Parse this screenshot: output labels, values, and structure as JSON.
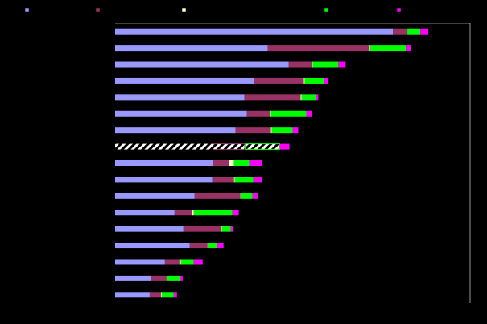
{
  "chart_data": {
    "type": "bar",
    "orientation": "horizontal",
    "stacked": true,
    "background": "#000000",
    "legend_position": "top",
    "grid": false,
    "xlim": [
      0,
      442
    ],
    "category_count": 17,
    "highlighted_row": 7,
    "series": [
      {
        "color": "#9999ff",
        "values": [
          346,
          190,
          216,
          173,
          161,
          164,
          150,
          122,
          122,
          121,
          99,
          74,
          85,
          93,
          62,
          45,
          43
        ]
      },
      {
        "color": "#993366",
        "values": [
          17,
          127,
          29,
          62,
          70,
          29,
          44,
          39,
          20,
          27,
          57,
          22,
          47,
          22,
          18,
          19,
          14
        ]
      },
      {
        "color": "#ffffcc",
        "values": [
          1,
          1,
          1,
          1,
          1,
          1,
          1,
          1,
          6,
          1,
          1,
          2,
          1,
          1,
          2,
          1,
          1
        ]
      },
      {
        "color": "#00ff00",
        "values": [
          16,
          44,
          32,
          24,
          18,
          44,
          26,
          43,
          19,
          23,
          14,
          48,
          11,
          11,
          16,
          16,
          15
        ]
      },
      {
        "color": "#ff00ff",
        "values": [
          10,
          6,
          9,
          5,
          3,
          7,
          7,
          12,
          16,
          11,
          7,
          8,
          3,
          8,
          11,
          3,
          4
        ]
      }
    ]
  }
}
